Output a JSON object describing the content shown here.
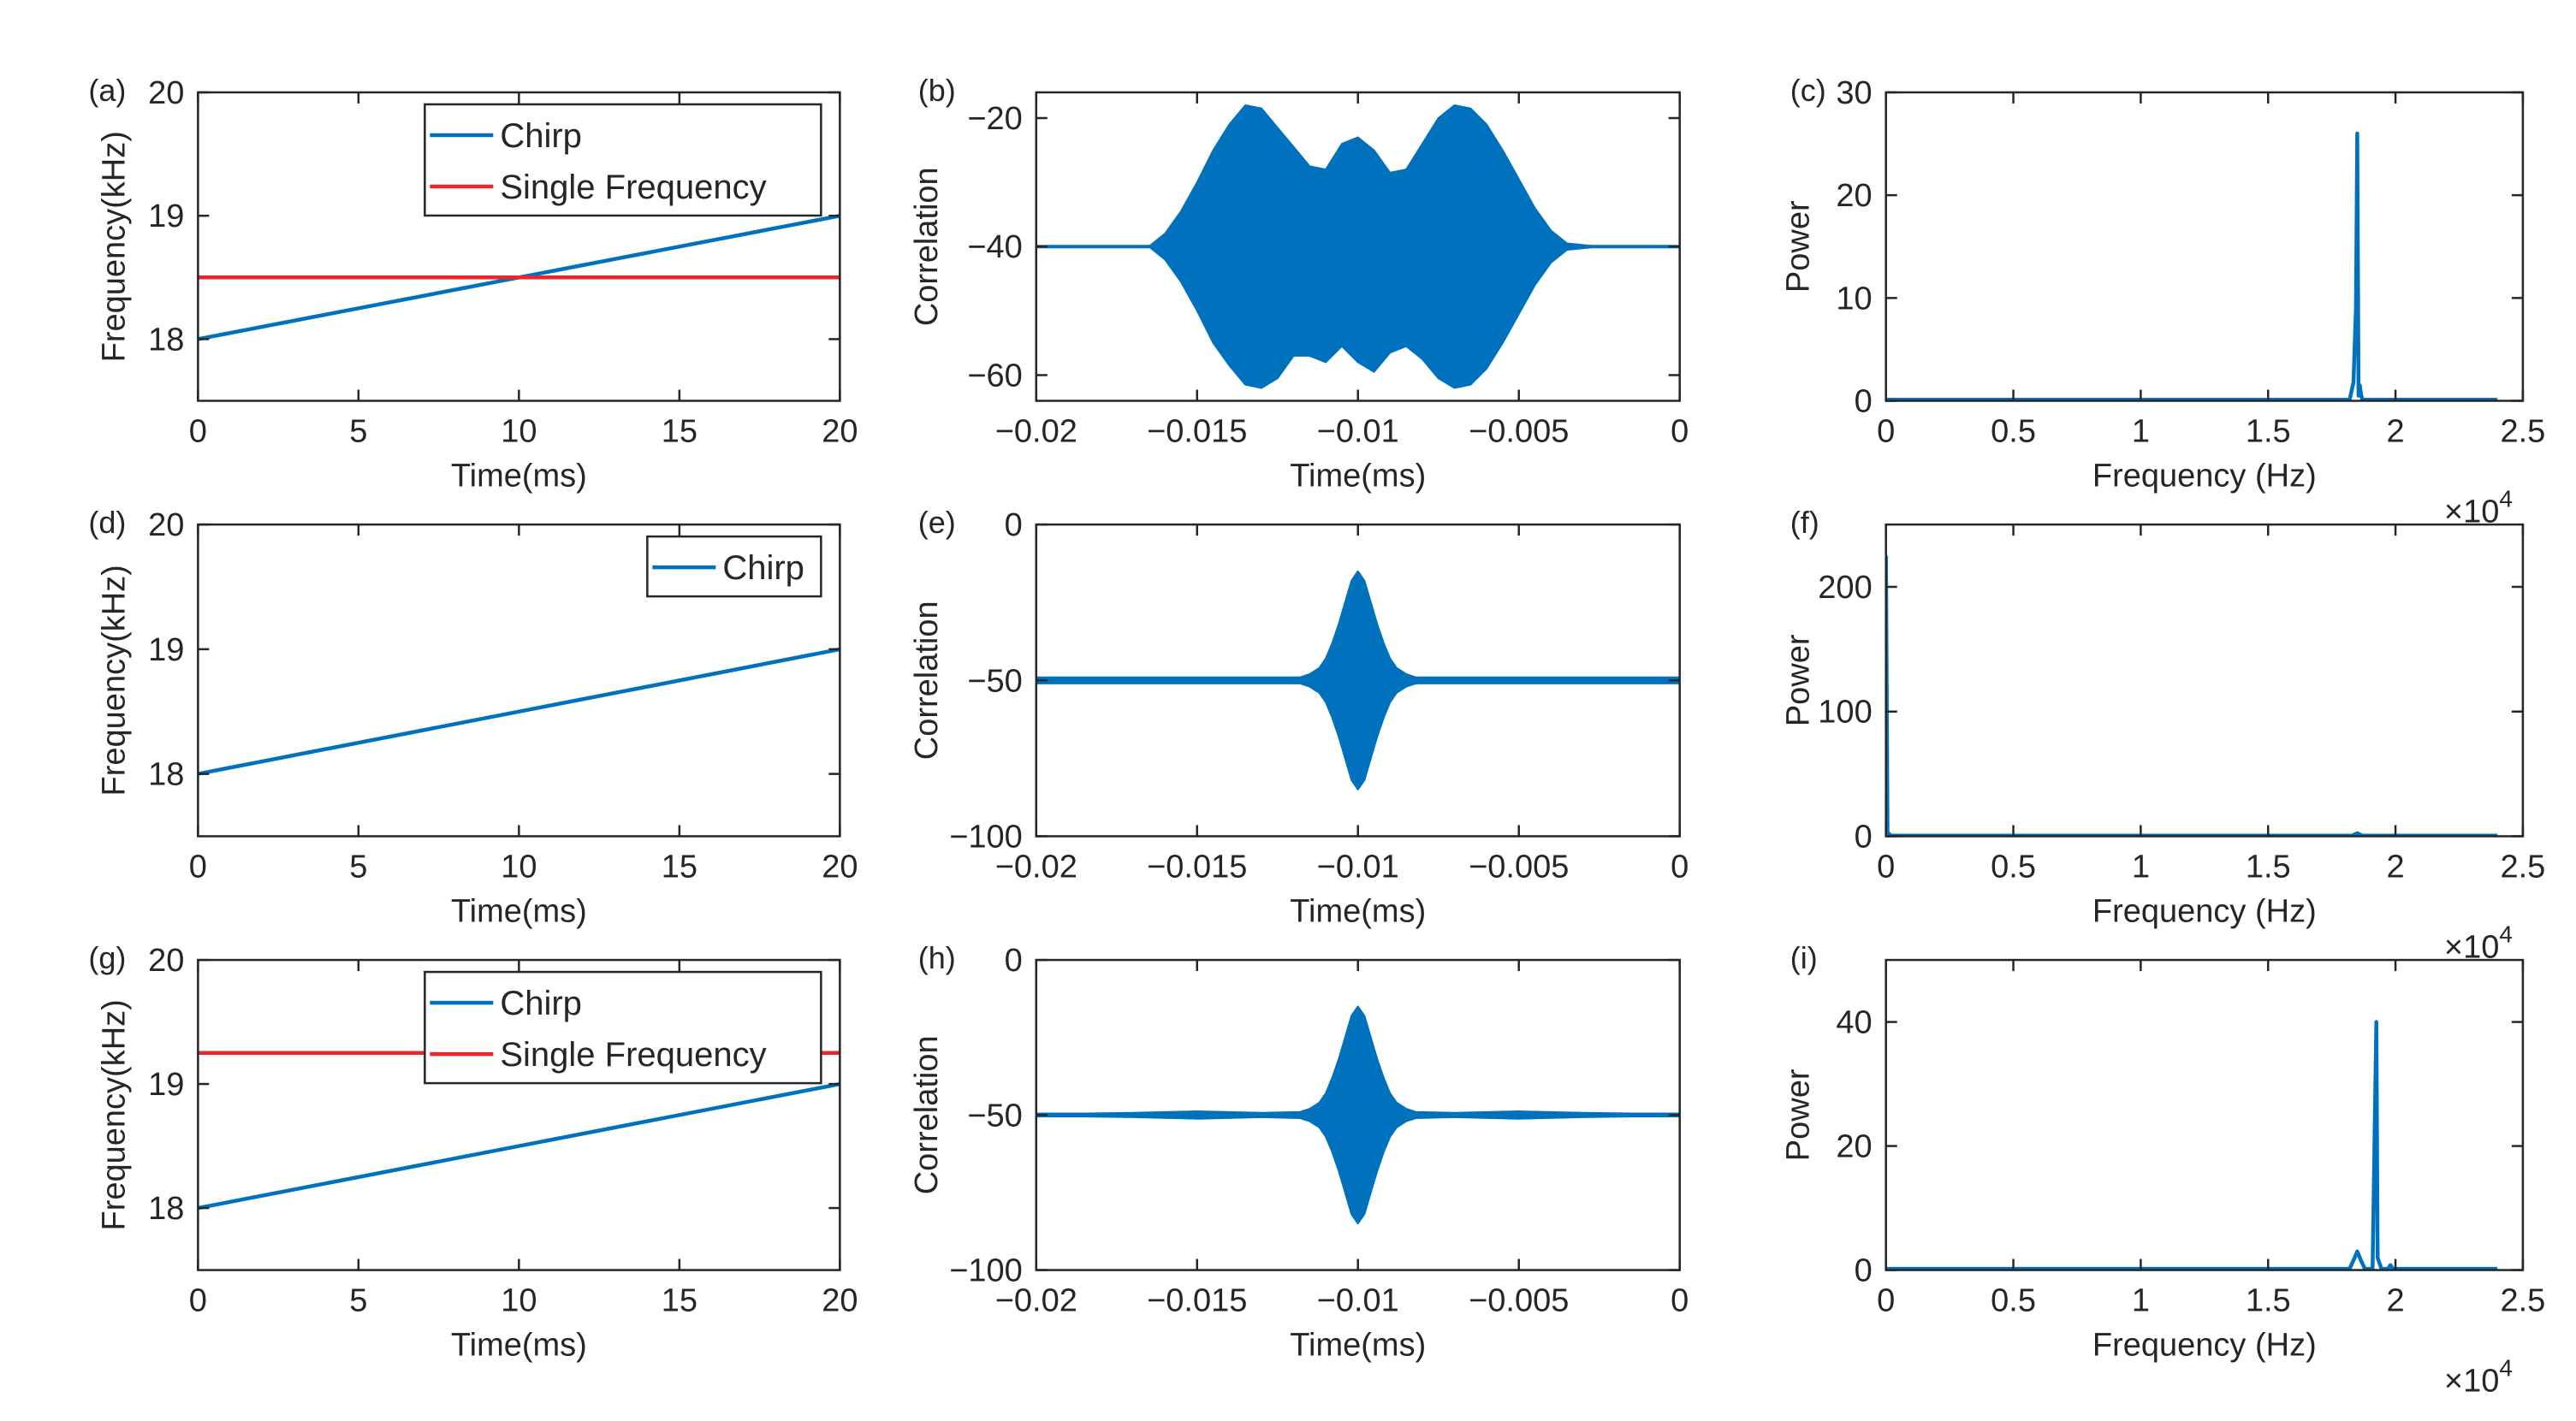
{
  "colors": {
    "chirp": "#0072BD",
    "single": "#E8262B",
    "axis": "#262626",
    "fill": "#0072BD"
  },
  "chart_data": [
    {
      "id": "a",
      "panel": "(a)",
      "type": "line",
      "xlabel": "Time(ms)",
      "ylabel": "Frequency(kHz)",
      "xlim": [
        0,
        20
      ],
      "ylim": [
        17.5,
        20
      ],
      "xticks": [
        0,
        5,
        10,
        15,
        20
      ],
      "xtick_labels": [
        "0",
        "5",
        "10",
        "15",
        "20"
      ],
      "yticks": [
        18,
        19,
        20
      ],
      "ytick_labels": [
        "18",
        "19",
        "20"
      ],
      "legend": [
        "Chirp",
        "Single Frequency"
      ],
      "legend_position": "top-right",
      "series": [
        {
          "name": "Chirp",
          "color": "chirp",
          "x": [
            0,
            20
          ],
          "y": [
            18,
            19
          ]
        },
        {
          "name": "Single Frequency",
          "color": "single",
          "x": [
            0,
            20
          ],
          "y": [
            18.5,
            18.5
          ]
        }
      ]
    },
    {
      "id": "b",
      "panel": "(b)",
      "type": "area",
      "xlabel": "Time(ms)",
      "ylabel": "Correlation",
      "xlim": [
        -0.02,
        0
      ],
      "ylim": [
        -64,
        -16
      ],
      "xticks": [
        -0.02,
        -0.015,
        -0.01,
        -0.005,
        0
      ],
      "xtick_labels": [
        "−0.02",
        "−0.015",
        "−0.01",
        "−0.005",
        "0"
      ],
      "yticks": [
        -60,
        -40,
        -20
      ],
      "ytick_labels": [
        "−60",
        "−40",
        "−20"
      ],
      "center": -40,
      "envelope": {
        "x": [
          -0.02,
          -0.0165,
          -0.016,
          -0.0155,
          -0.015,
          -0.0145,
          -0.014,
          -0.0135,
          -0.013,
          -0.0125,
          -0.012,
          -0.0115,
          -0.011,
          -0.0105,
          -0.01,
          -0.0095,
          -0.009,
          -0.0085,
          -0.008,
          -0.0075,
          -0.007,
          -0.0065,
          -0.006,
          -0.0055,
          -0.005,
          -0.0045,
          -0.004,
          -0.0035,
          -0.0025,
          0
        ],
        "upper": [
          -40,
          -40,
          -38,
          -34.5,
          -30,
          -25,
          -21,
          -18,
          -18.5,
          -21.5,
          -24.5,
          -27.5,
          -28,
          -24,
          -23,
          -25,
          -28.5,
          -28,
          -24,
          -20,
          -18,
          -18.5,
          -21,
          -25,
          -29.5,
          -34,
          -37.5,
          -39.5,
          -40,
          -40
        ],
        "lower": [
          -40,
          -40,
          -42,
          -45.5,
          -50,
          -55,
          -58.5,
          -61.5,
          -62,
          -60.5,
          -57,
          -57,
          -58,
          -55.5,
          -58,
          -59.5,
          -56.5,
          -55.5,
          -57.5,
          -60.5,
          -62,
          -61.5,
          -59,
          -55,
          -50.5,
          -46,
          -42.5,
          -40.5,
          -40,
          -40
        ]
      }
    },
    {
      "id": "c",
      "panel": "(c)",
      "type": "line",
      "xlabel": "Frequency (Hz)",
      "ylabel": "Power",
      "x_multiplier": "×10",
      "x_multiplier_exp": "4",
      "xlim": [
        0,
        25000
      ],
      "ylim": [
        0,
        30
      ],
      "xticks": [
        0,
        5000,
        10000,
        15000,
        20000,
        25000
      ],
      "xtick_labels": [
        "0",
        "0.5",
        "1",
        "1.5",
        "2",
        "2.5"
      ],
      "yticks": [
        0,
        10,
        20,
        30
      ],
      "ytick_labels": [
        "0",
        "10",
        "20",
        "30"
      ],
      "series": [
        {
          "name": "Power",
          "color": "chirp",
          "x": [
            0,
            18200,
            18350,
            18450,
            18500,
            18550,
            18600,
            18650,
            18700,
            18800,
            24000
          ],
          "y": [
            0.1,
            0.1,
            1.8,
            9,
            26,
            0.5,
            1.5,
            0.6,
            0.1,
            0.1,
            0.1
          ]
        }
      ]
    },
    {
      "id": "d",
      "panel": "(d)",
      "type": "line",
      "xlabel": "Time(ms)",
      "ylabel": "Frequency(kHz)",
      "xlim": [
        0,
        20
      ],
      "ylim": [
        17.5,
        20
      ],
      "xticks": [
        0,
        5,
        10,
        15,
        20
      ],
      "xtick_labels": [
        "0",
        "5",
        "10",
        "15",
        "20"
      ],
      "yticks": [
        18,
        19,
        20
      ],
      "ytick_labels": [
        "18",
        "19",
        "20"
      ],
      "legend": [
        "Chirp"
      ],
      "legend_position": "top-right",
      "series": [
        {
          "name": "Chirp",
          "color": "chirp",
          "x": [
            0,
            20
          ],
          "y": [
            18,
            19
          ]
        }
      ]
    },
    {
      "id": "e",
      "panel": "(e)",
      "type": "area",
      "xlabel": "Time(ms)",
      "ylabel": "Correlation",
      "xlim": [
        -0.02,
        0
      ],
      "ylim": [
        -100,
        0
      ],
      "xticks": [
        -0.02,
        -0.015,
        -0.01,
        -0.005,
        0
      ],
      "xtick_labels": [
        "−0.02",
        "−0.015",
        "−0.01",
        "−0.005",
        "0"
      ],
      "yticks": [
        -100,
        -50,
        0
      ],
      "ytick_labels": [
        "−100",
        "−50",
        "0"
      ],
      "center": -50,
      "envelope": {
        "x": [
          -0.02,
          -0.0118,
          -0.0115,
          -0.0112,
          -0.011,
          -0.0108,
          -0.0106,
          -0.0104,
          -0.0102,
          -0.01,
          -0.0098,
          -0.0096,
          -0.0094,
          -0.0092,
          -0.009,
          -0.0088,
          -0.0085,
          -0.0082,
          0
        ],
        "upper": [
          -49,
          -49,
          -48,
          -46,
          -43,
          -38,
          -32,
          -25,
          -18,
          -15,
          -18,
          -25,
          -32,
          -38,
          -43,
          -46,
          -48,
          -49,
          -49
        ],
        "lower": [
          -51,
          -51,
          -52,
          -54,
          -57,
          -62,
          -68,
          -75,
          -82,
          -85,
          -82,
          -75,
          -68,
          -62,
          -57,
          -54,
          -52,
          -51,
          -51
        ]
      }
    },
    {
      "id": "f",
      "panel": "(f)",
      "type": "line",
      "xlabel": "Frequency (Hz)",
      "ylabel": "Power",
      "x_multiplier": "×10",
      "x_multiplier_exp": "4",
      "xlim": [
        0,
        25000
      ],
      "ylim": [
        0,
        250
      ],
      "xticks": [
        0,
        5000,
        10000,
        15000,
        20000,
        25000
      ],
      "xtick_labels": [
        "0",
        "0.5",
        "1",
        "1.5",
        "2",
        "2.5"
      ],
      "yticks": [
        0,
        100,
        200
      ],
      "ytick_labels": [
        "0",
        "100",
        "200"
      ],
      "series": [
        {
          "name": "Power",
          "color": "chirp",
          "x": [
            0,
            60,
            200,
            18300,
            18500,
            18700,
            24000
          ],
          "y": [
            225,
            3,
            0.5,
            0.5,
            2.5,
            0.5,
            0.5
          ]
        }
      ]
    },
    {
      "id": "g",
      "panel": "(g)",
      "type": "line",
      "xlabel": "Time(ms)",
      "ylabel": "Frequency(kHz)",
      "xlim": [
        0,
        20
      ],
      "ylim": [
        17.5,
        20
      ],
      "xticks": [
        0,
        5,
        10,
        15,
        20
      ],
      "xtick_labels": [
        "0",
        "5",
        "10",
        "15",
        "20"
      ],
      "yticks": [
        18,
        19,
        20
      ],
      "ytick_labels": [
        "18",
        "19",
        "20"
      ],
      "legend": [
        "Chirp",
        "Single Frequency"
      ],
      "legend_position": "top-right",
      "series": [
        {
          "name": "Chirp",
          "color": "chirp",
          "x": [
            0,
            20
          ],
          "y": [
            18,
            19
          ]
        },
        {
          "name": "Single Frequency",
          "color": "single",
          "x": [
            0,
            20
          ],
          "y": [
            19.25,
            19.25
          ]
        }
      ]
    },
    {
      "id": "h",
      "panel": "(h)",
      "type": "area",
      "xlabel": "Time(ms)",
      "ylabel": "Correlation",
      "xlim": [
        -0.02,
        0
      ],
      "ylim": [
        -100,
        0
      ],
      "xticks": [
        -0.02,
        -0.015,
        -0.01,
        -0.005,
        0
      ],
      "xtick_labels": [
        "−0.02",
        "−0.015",
        "−0.01",
        "−0.005",
        "0"
      ],
      "yticks": [
        -100,
        -50,
        0
      ],
      "ytick_labels": [
        "−100",
        "−50",
        "0"
      ],
      "center": -50,
      "envelope": {
        "x": [
          -0.02,
          -0.0185,
          -0.017,
          -0.015,
          -0.013,
          -0.0118,
          -0.0115,
          -0.0112,
          -0.011,
          -0.0108,
          -0.0106,
          -0.0104,
          -0.0102,
          -0.01,
          -0.0098,
          -0.0096,
          -0.0094,
          -0.0092,
          -0.009,
          -0.0088,
          -0.0085,
          -0.0082,
          -0.007,
          -0.005,
          -0.003,
          -0.0015,
          0
        ],
        "upper": [
          -49.5,
          -49.5,
          -49.3,
          -48.8,
          -49.3,
          -49,
          -48,
          -46,
          -43,
          -38,
          -32,
          -25,
          -18,
          -15,
          -18,
          -25,
          -32,
          -38,
          -43,
          -46,
          -48,
          -49,
          -49.3,
          -48.8,
          -49.3,
          -49.5,
          -49.5
        ],
        "lower": [
          -50.5,
          -50.5,
          -50.7,
          -51.2,
          -50.7,
          -51,
          -52,
          -54,
          -57,
          -62,
          -68,
          -75,
          -82,
          -85,
          -82,
          -75,
          -68,
          -62,
          -57,
          -54,
          -52,
          -51,
          -50.7,
          -51.2,
          -50.7,
          -50.5,
          -50.5
        ]
      }
    },
    {
      "id": "i",
      "panel": "(i)",
      "type": "line",
      "xlabel": "Frequency (Hz)",
      "ylabel": "Power",
      "x_multiplier": "×10",
      "x_multiplier_exp": "4",
      "xlim": [
        0,
        25000
      ],
      "ylim": [
        0,
        50
      ],
      "xticks": [
        0,
        5000,
        10000,
        15000,
        20000,
        25000
      ],
      "xtick_labels": [
        "0",
        "0.5",
        "1",
        "1.5",
        "2",
        "2.5"
      ],
      "yticks": [
        0,
        20,
        40
      ],
      "ytick_labels": [
        "0",
        "20",
        "40"
      ],
      "series": [
        {
          "name": "Power",
          "color": "chirp",
          "x": [
            0,
            18200,
            18400,
            18500,
            18650,
            18800,
            19100,
            19250,
            19300,
            19450,
            19700,
            19800,
            19900,
            24000
          ],
          "y": [
            0.2,
            0.2,
            2,
            3,
            1.5,
            0.2,
            0.2,
            40,
            2,
            0.2,
            0.2,
            0.8,
            0.2,
            0.2
          ]
        }
      ]
    }
  ]
}
